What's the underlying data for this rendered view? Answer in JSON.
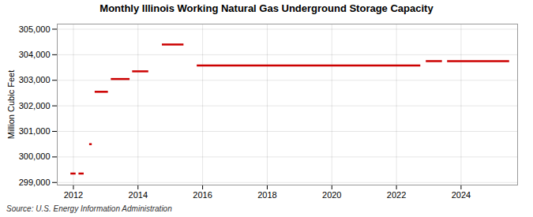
{
  "chart_data": {
    "type": "segment",
    "title": "Monthly Illinois Working Natural Gas Underground Storage Capacity",
    "ylabel": "Million Cubic Feet",
    "source": "Source: U.S. Energy Information Administration",
    "color": "#cc0000",
    "x": [
      2011.92,
      2012.17,
      2012.5,
      2012.67,
      2013.17,
      2013.83,
      2014.75,
      2015.83,
      2022.92,
      2023.58
    ],
    "x_end": [
      2012.08,
      2012.33,
      2012.58,
      2013.08,
      2013.75,
      2014.33,
      2015.42,
      2022.75,
      2023.42,
      2025.5
    ],
    "values": [
      299350,
      299350,
      300500,
      302550,
      303050,
      303350,
      304400,
      303580,
      303750,
      303750
    ],
    "xlim": [
      2011.5,
      2025.75
    ],
    "xticks": [
      2012,
      2014,
      2016,
      2018,
      2020,
      2022,
      2024
    ],
    "ylim": [
      298900,
      305200
    ],
    "yticks": [
      {
        "value": 299000,
        "label": "299,000"
      },
      {
        "value": 300000,
        "label": "300,000"
      },
      {
        "value": 301000,
        "label": "301,000"
      },
      {
        "value": 302000,
        "label": "302,000"
      },
      {
        "value": 303000,
        "label": "303,000"
      },
      {
        "value": 304000,
        "label": "304,000"
      },
      {
        "value": 305000,
        "label": "305,000"
      }
    ],
    "grid": true
  }
}
